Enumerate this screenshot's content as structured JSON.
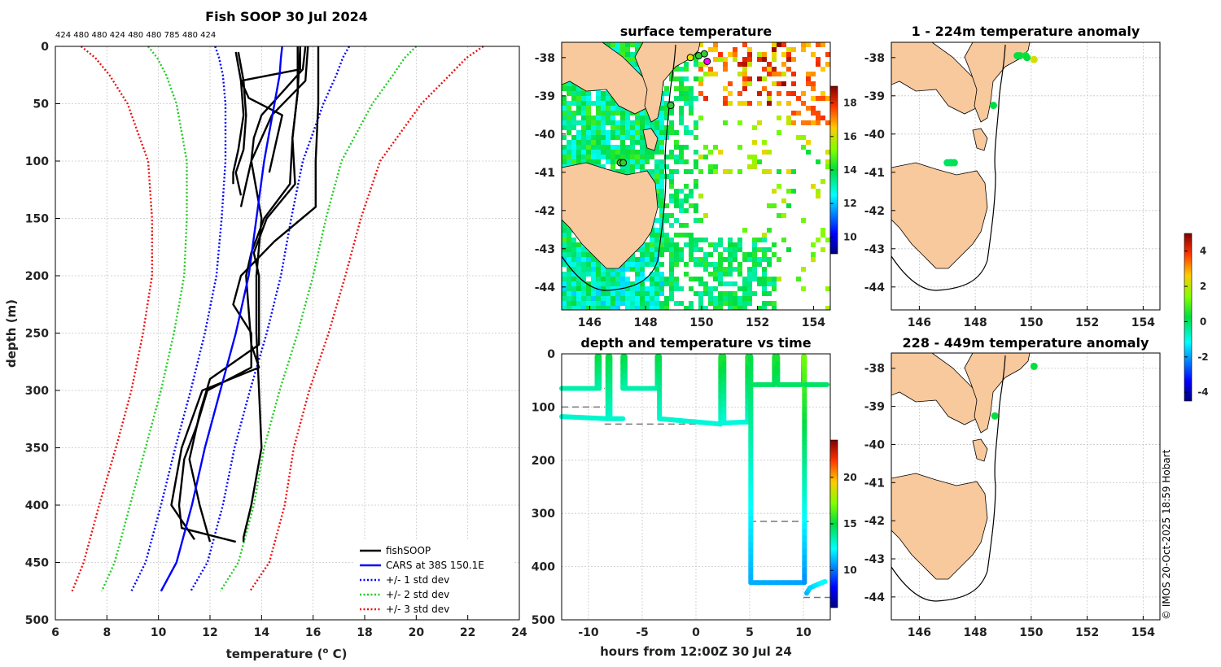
{
  "title": "Fish SOOP 30 Jul 2024",
  "credit": "© IMOS 20-Oct-2025 18:59 Hobart",
  "colors": {
    "land": "#f8c99c",
    "fishsoop": "#000000",
    "cars": "#0000ff",
    "std1": "#0000ff",
    "std2": "#22cc22",
    "std3": "#ee1111"
  },
  "chart_data": [
    {
      "id": "profile",
      "type": "line",
      "title": "Fish SOOP 30 Jul 2024",
      "xlabel": "temperature (",
      "xlabel_sup": "o",
      "xlabel_end": " C)",
      "ylabel": "depth (m)",
      "xlim": [
        6,
        24
      ],
      "ylim": [
        0,
        500
      ],
      "xticks": [
        6,
        8,
        10,
        12,
        14,
        16,
        18,
        20,
        22,
        24
      ],
      "yticks": [
        0,
        50,
        100,
        150,
        200,
        250,
        300,
        350,
        400,
        450,
        500
      ],
      "top_depth_labels": "424 480 480 424 480 480 785 480 424",
      "legend": [
        {
          "label": "fishSOOP",
          "color": "#000000",
          "dash": false
        },
        {
          "label": "CARS at 38S 150.1E",
          "color": "#0000ff",
          "dash": false
        },
        {
          "label": "+/- 1 std dev",
          "color": "#0000ff",
          "dash": true
        },
        {
          "label": "+/- 2 std dev",
          "color": "#22cc22",
          "dash": true
        },
        {
          "label": "+/- 3 std dev",
          "color": "#ee1111",
          "dash": true
        }
      ],
      "cars_mean": {
        "depth": [
          0,
          10,
          25,
          50,
          75,
          100,
          150,
          200,
          250,
          300,
          350,
          400,
          450,
          475
        ],
        "temp": [
          14.8,
          14.75,
          14.7,
          14.5,
          14.3,
          14.1,
          13.8,
          13.5,
          13.0,
          12.4,
          11.8,
          11.3,
          10.7,
          10.1
        ]
      },
      "std_offsets": [
        {
          "name": "1",
          "color": "#0000ff",
          "sd": [
            2.6,
            2.4,
            2.2,
            1.9,
            1.7,
            1.5,
            1.35,
            1.25,
            1.2,
            1.15,
            1.15,
            1.2,
            1.2,
            1.15
          ]
        },
        {
          "name": "2",
          "color": "#22cc22",
          "sd": [
            2.6,
            2.4,
            2.2,
            1.9,
            1.7,
            1.5,
            1.35,
            1.25,
            1.2,
            1.15,
            1.15,
            1.2,
            1.2,
            1.15
          ],
          "k": 2
        },
        {
          "name": "3",
          "color": "#ee1111",
          "sd": [
            2.6,
            2.4,
            2.2,
            1.9,
            1.7,
            1.5,
            1.35,
            1.25,
            1.2,
            1.15,
            1.15,
            1.2,
            1.2,
            1.15
          ],
          "k": 3
        }
      ],
      "fishsoop": [
        {
          "depth": [
            5,
            30,
            60,
            90,
            110,
            120
          ],
          "temp": [
            13.0,
            13.2,
            13.3,
            13.1,
            12.9,
            12.9
          ]
        },
        {
          "depth": [
            5,
            30,
            60,
            90,
            110,
            130
          ],
          "temp": [
            13.1,
            13.3,
            13.4,
            13.3,
            13.0,
            13.2
          ]
        },
        {
          "depth": [
            0,
            20,
            30,
            45,
            60,
            80,
            110
          ],
          "temp": [
            15.5,
            15.5,
            13.2,
            13.5,
            14.8,
            14.6,
            14.3
          ]
        },
        {
          "depth": [
            0,
            20,
            40,
            60,
            80,
            100,
            120,
            140
          ],
          "temp": [
            15.7,
            15.6,
            14.8,
            14.0,
            13.7,
            13.6,
            13.4,
            13.2
          ]
        },
        {
          "depth": [
            0,
            30,
            60,
            100,
            150,
            200,
            230,
            250,
            300,
            350,
            400,
            428,
            432
          ],
          "temp": [
            15.8,
            15.7,
            14.4,
            13.6,
            14.0,
            13.8,
            13.8,
            13.8,
            13.9,
            14.0,
            13.6,
            13.3,
            13.3
          ]
        },
        {
          "depth": [
            0,
            50,
            100,
            140,
            170,
            200,
            225,
            250,
            280,
            300,
            330,
            360,
            400,
            420,
            432
          ],
          "temp": [
            16.2,
            16.2,
            16.1,
            16.1,
            14.5,
            13.2,
            12.9,
            13.6,
            13.6,
            11.9,
            11.5,
            11.0,
            10.8,
            10.9,
            13.0
          ]
        },
        {
          "depth": [
            0,
            40,
            80,
            120,
            150,
            180,
            200,
            260,
            280,
            300,
            350,
            400,
            430
          ],
          "temp": [
            15.4,
            15.4,
            15.2,
            15.1,
            14.1,
            13.6,
            13.4,
            13.6,
            13.9,
            11.7,
            10.9,
            10.5,
            11.4
          ]
        },
        {
          "depth": [
            0,
            40,
            80,
            120,
            150,
            180,
            200,
            260,
            290,
            320,
            360,
            400,
            432
          ],
          "temp": [
            15.5,
            15.4,
            15.2,
            15.3,
            14.2,
            13.7,
            13.9,
            13.9,
            12.0,
            11.6,
            11.2,
            11.6,
            12.0
          ]
        }
      ]
    },
    {
      "id": "sst",
      "type": "heatmap",
      "title": "surface temperature",
      "xticks": [
        146,
        148,
        150,
        152,
        154
      ],
      "yticks": [
        -38,
        -39,
        -40,
        -41,
        -42,
        -43,
        -44
      ],
      "colorbar_ticks": [
        10,
        12,
        14,
        16,
        18
      ],
      "colorbar_range": [
        9,
        19
      ]
    },
    {
      "id": "timeseries",
      "type": "scatter",
      "title": "depth and temperature vs time",
      "xlabel": "hours from 12:00Z 30 Jul 24",
      "xlim": [
        -12.5,
        12.5
      ],
      "ylim": [
        0,
        500
      ],
      "xticks": [
        -10,
        -5,
        0,
        5,
        10
      ],
      "yticks": [
        0,
        100,
        200,
        300,
        400,
        500
      ],
      "colorbar_ticks": [
        10,
        15,
        20
      ],
      "colorbar_range": [
        6,
        24
      ]
    },
    {
      "id": "anom1",
      "type": "scatter",
      "title": "1 - 224m temperature anomaly",
      "xticks": [
        146,
        148,
        150,
        152,
        154
      ],
      "yticks": [
        -38,
        -39,
        -40,
        -41,
        -42,
        -43,
        -44
      ]
    },
    {
      "id": "anom2",
      "type": "scatter",
      "title": "228 - 449m temperature anomaly",
      "xticks": [
        146,
        148,
        150,
        152,
        154
      ],
      "yticks": [
        -38,
        -39,
        -40,
        -41,
        -42,
        -43,
        -44
      ],
      "colorbar_ticks": [
        4,
        2,
        0,
        -2,
        -4
      ],
      "colorbar_range": [
        -4.5,
        5
      ]
    }
  ]
}
